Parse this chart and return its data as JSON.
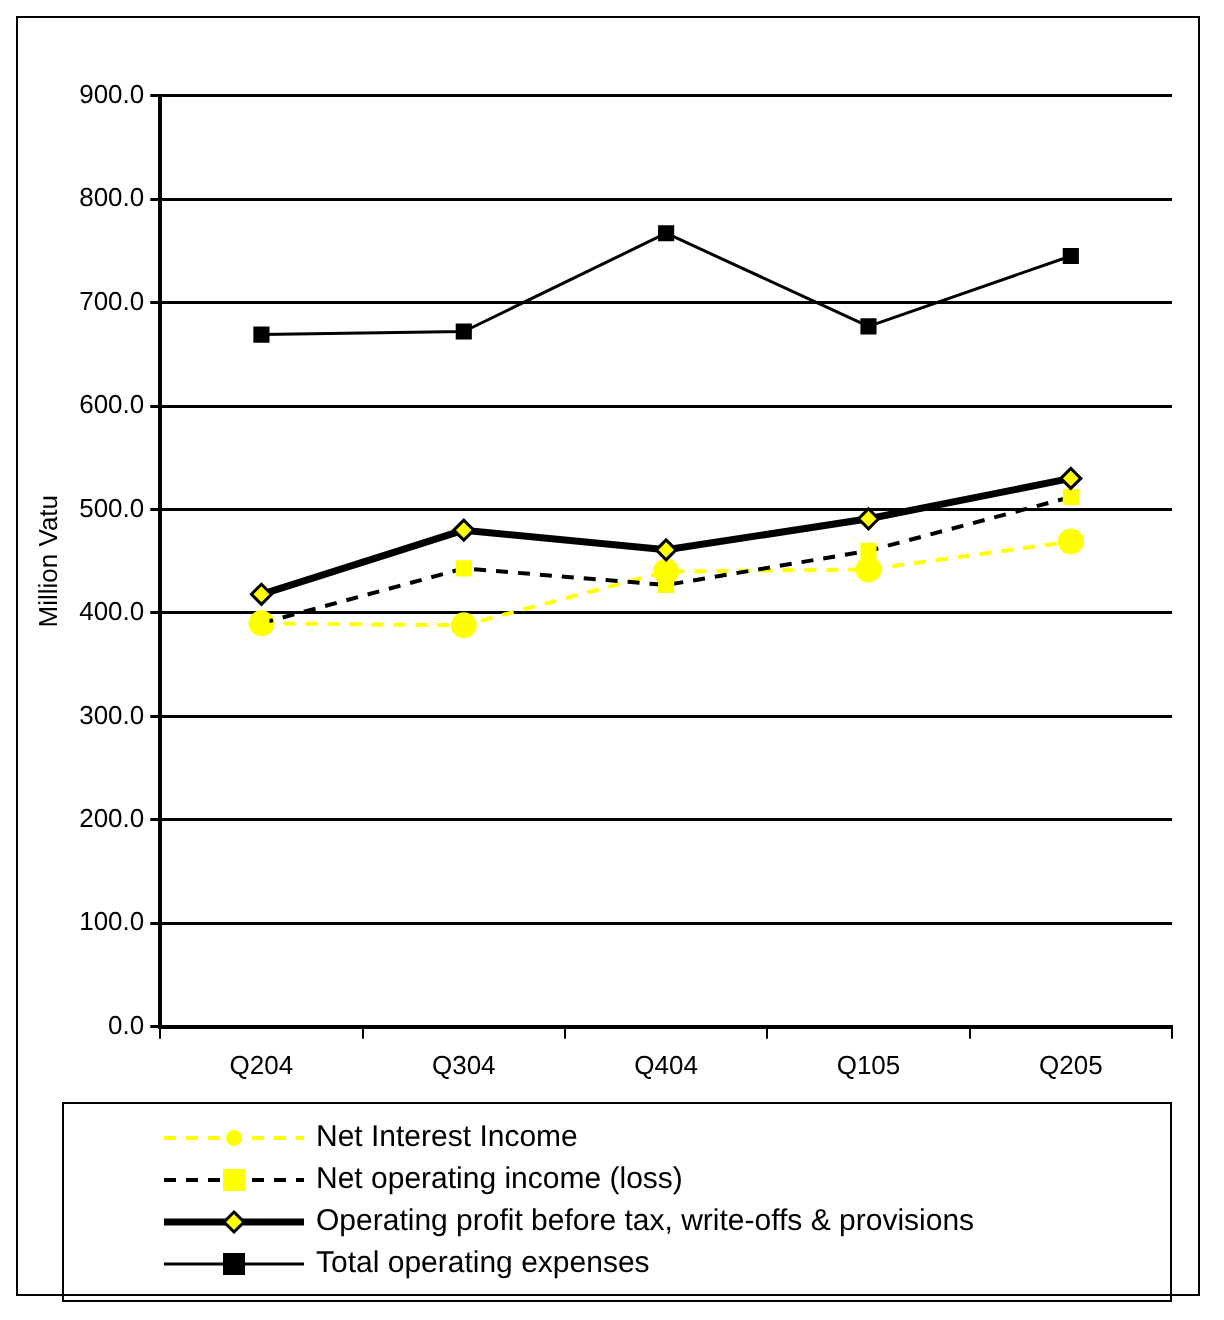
{
  "chart_data": {
    "type": "line",
    "ylabel": "Million Vatu",
    "categories": [
      "Q204",
      "Q304",
      "Q404",
      "Q105",
      "Q205"
    ],
    "series": [
      {
        "name": "Net Interest Income",
        "color": "#ffff00",
        "values": [
          390,
          388,
          440,
          442,
          469
        ],
        "marker": "circle",
        "line_style": "dashed"
      },
      {
        "name": "Net operating income (loss)",
        "color": "#ffff00",
        "values": [
          390,
          443,
          427,
          460,
          512
        ],
        "marker": "square",
        "line_style": "dashed"
      },
      {
        "name": "Operating profit before tax, write-offs & provisions",
        "color": "#000000",
        "values": [
          418,
          480,
          461,
          491,
          530
        ],
        "marker": "diamond",
        "line_style": "solid"
      },
      {
        "name": "Total operating expenses",
        "color": "#000000",
        "values": [
          669,
          672,
          767,
          677,
          745
        ],
        "marker": "square",
        "line_style": "solid"
      }
    ],
    "ylim": [
      0,
      900
    ],
    "yticks": [
      {
        "value": 0,
        "label": "0.0"
      },
      {
        "value": 100,
        "label": "100.0"
      },
      {
        "value": 200,
        "label": "200.0"
      },
      {
        "value": 300,
        "label": "300.0"
      },
      {
        "value": 400,
        "label": "400.0"
      },
      {
        "value": 500,
        "label": "500.0"
      },
      {
        "value": 600,
        "label": "600.0"
      },
      {
        "value": 700,
        "label": "700.0"
      },
      {
        "value": 800,
        "label": "800.0"
      },
      {
        "value": 900,
        "label": "900.0"
      }
    ],
    "grid": "y",
    "legend": "bottom"
  }
}
